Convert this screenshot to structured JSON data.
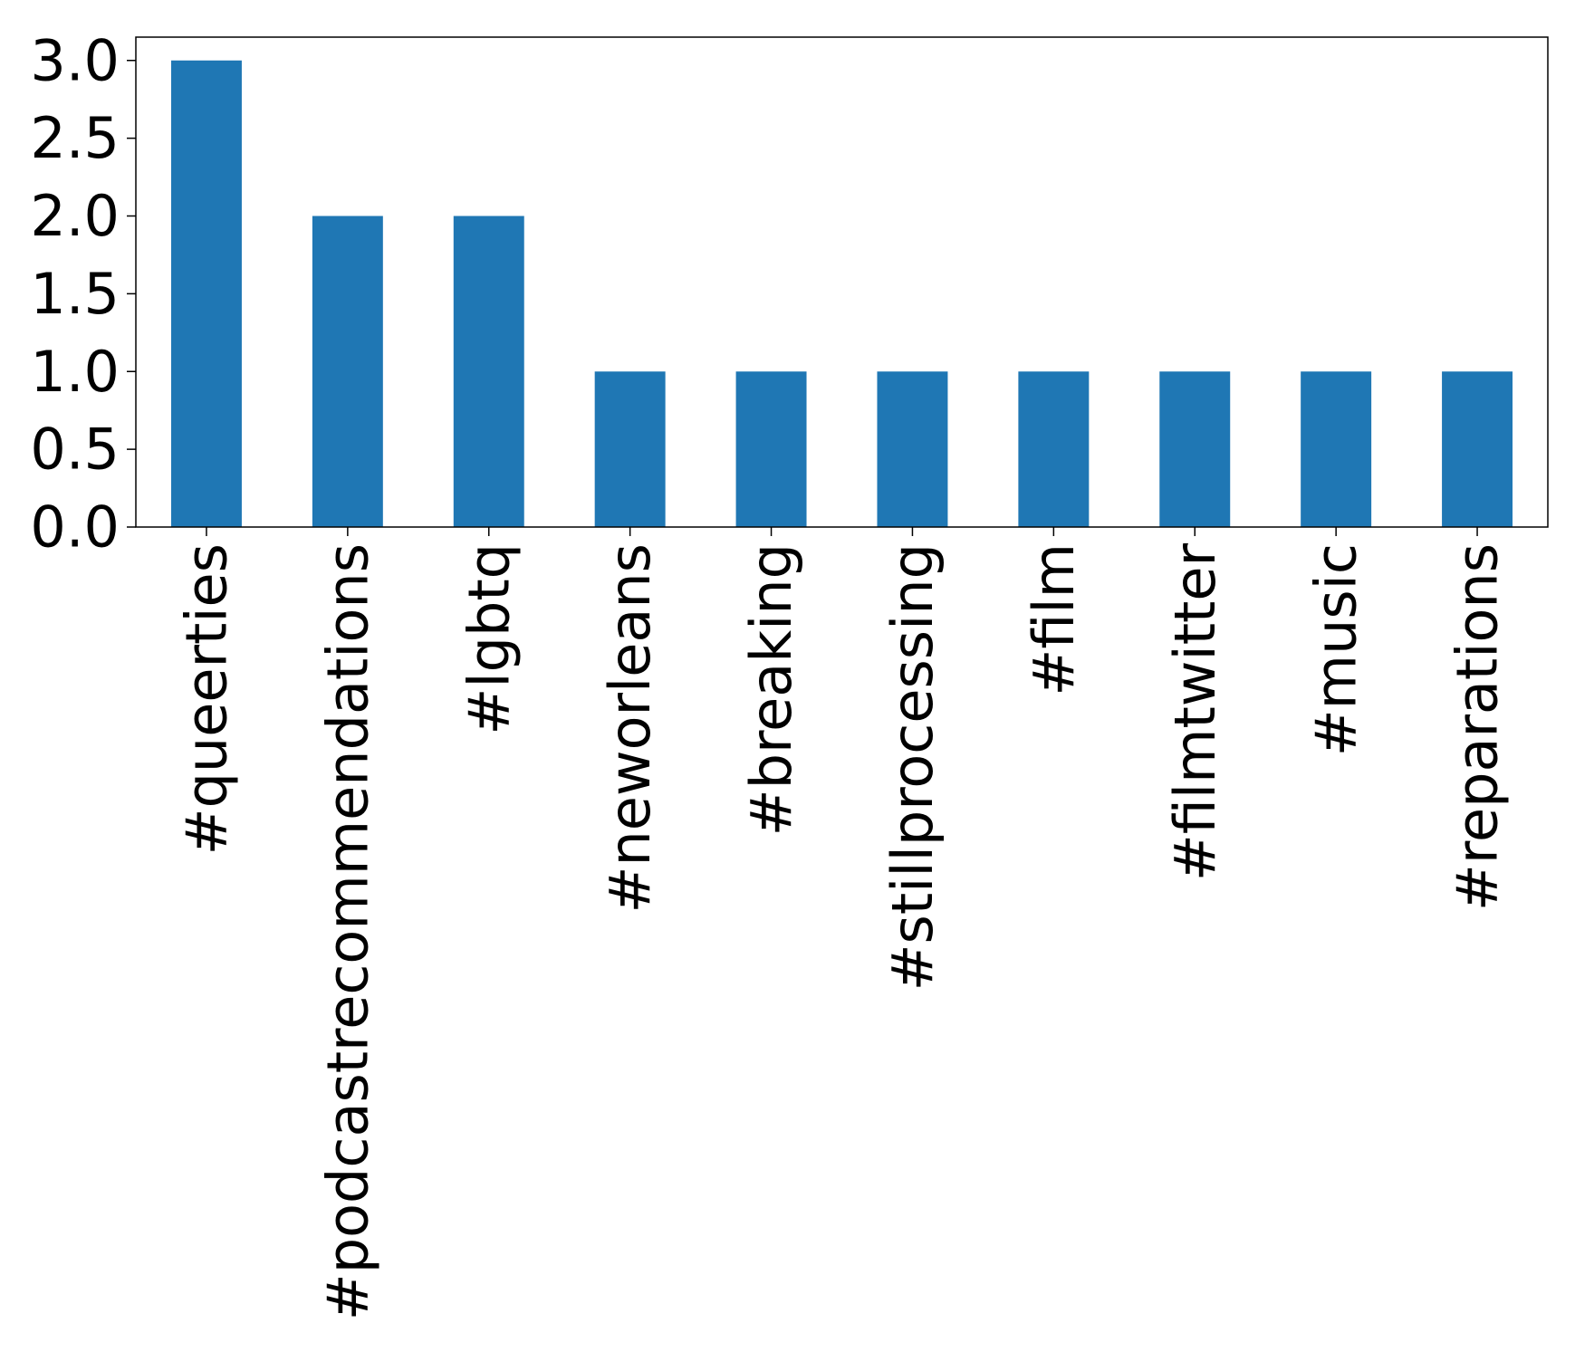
{
  "chart_data": {
    "type": "bar",
    "title": "",
    "xlabel": "",
    "ylabel": "",
    "categories": [
      "#queerties",
      "#podcastrecommendations",
      "#lgbtq",
      "#neworleans",
      "#breaking",
      "#stillprocessing",
      "#film",
      "#filmtwitter",
      "#music",
      "#reparations"
    ],
    "values": [
      3,
      2,
      2,
      1,
      1,
      1,
      1,
      1,
      1,
      1
    ],
    "ylim": [
      0,
      3.15
    ],
    "yticks": [
      "0.0",
      "0.5",
      "1.0",
      "1.5",
      "2.0",
      "2.5",
      "3.0"
    ],
    "grid": false,
    "legend": "none",
    "bar_color": "#1f77b4"
  }
}
